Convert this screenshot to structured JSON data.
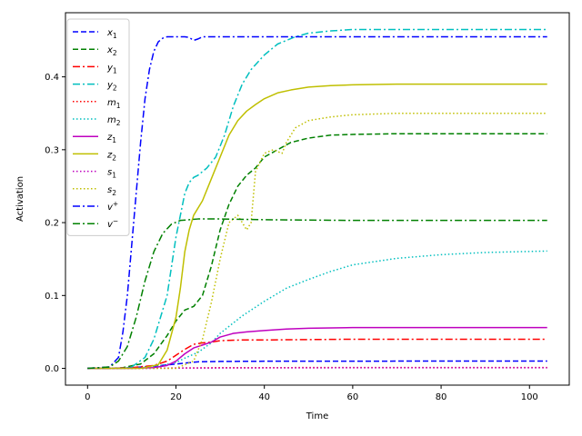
{
  "chart_data": {
    "type": "line",
    "xlabel": "Time",
    "ylabel": "Activation",
    "xlim": [
      -5,
      109
    ],
    "ylim": [
      -0.023,
      0.488
    ],
    "xticks": [
      0,
      20,
      40,
      60,
      80,
      100
    ],
    "xtick_labels": [
      "0",
      "20",
      "40",
      "60",
      "80",
      "100"
    ],
    "yticks": [
      0.0,
      0.1,
      0.2,
      0.3,
      0.4
    ],
    "ytick_labels": [
      "0.0",
      "0.1",
      "0.2",
      "0.3",
      "0.4"
    ],
    "grid": false,
    "legend_position": "top-left",
    "series": [
      {
        "name": "x",
        "sub": "1",
        "sup": "",
        "color": "#0000ff",
        "dash": "dashed",
        "x": [
          0,
          5,
          10,
          15,
          20,
          25,
          30,
          40,
          60,
          80,
          104
        ],
        "y": [
          0,
          0.0,
          0.001,
          0.003,
          0.006,
          0.009,
          0.0095,
          0.0098,
          0.0099,
          0.01,
          0.01
        ]
      },
      {
        "name": "x",
        "sub": "2",
        "sup": "",
        "color": "#008000",
        "dash": "dashed",
        "x": [
          0,
          5,
          8,
          12,
          15,
          18,
          20,
          22,
          24,
          26,
          28,
          30,
          32,
          34,
          36,
          38,
          40,
          43,
          46,
          50,
          55,
          60,
          70,
          80,
          104
        ],
        "y": [
          0,
          0.0,
          0.001,
          0.006,
          0.02,
          0.045,
          0.065,
          0.08,
          0.085,
          0.1,
          0.14,
          0.19,
          0.225,
          0.25,
          0.265,
          0.275,
          0.29,
          0.3,
          0.31,
          0.316,
          0.32,
          0.321,
          0.322,
          0.322,
          0.322
        ]
      },
      {
        "name": "y",
        "sub": "1",
        "sup": "",
        "color": "#ff0000",
        "dash": "dashdot",
        "x": [
          0,
          5,
          10,
          15,
          18,
          20,
          22,
          24,
          26,
          28,
          30,
          35,
          40,
          60,
          80,
          104
        ],
        "y": [
          0,
          0.0,
          0.001,
          0.004,
          0.01,
          0.018,
          0.026,
          0.033,
          0.035,
          0.036,
          0.038,
          0.039,
          0.039,
          0.04,
          0.04,
          0.04
        ]
      },
      {
        "name": "y",
        "sub": "2",
        "sup": "",
        "color": "#00bfbf",
        "dash": "dashdot",
        "x": [
          0,
          8,
          10,
          13,
          15,
          18,
          20,
          22,
          23,
          24,
          25,
          27,
          29,
          31,
          33,
          35,
          37,
          40,
          43,
          47,
          50,
          55,
          60,
          70,
          80,
          104
        ],
        "y": [
          0,
          0.0,
          0.002,
          0.015,
          0.04,
          0.1,
          0.18,
          0.24,
          0.255,
          0.262,
          0.265,
          0.275,
          0.29,
          0.32,
          0.36,
          0.39,
          0.41,
          0.43,
          0.445,
          0.455,
          0.46,
          0.463,
          0.465,
          0.465,
          0.465,
          0.465
        ]
      },
      {
        "name": "m",
        "sub": "1",
        "sup": "",
        "color": "#ff0000",
        "dash": "dotted",
        "x": [
          0,
          10,
          20,
          30,
          40,
          60,
          80,
          104
        ],
        "y": [
          0,
          0.0,
          0.0005,
          0.001,
          0.001,
          0.0012,
          0.0012,
          0.0012
        ]
      },
      {
        "name": "m",
        "sub": "2",
        "sup": "",
        "color": "#00bfbf",
        "dash": "dotted",
        "x": [
          0,
          10,
          15,
          20,
          22,
          25,
          28,
          30,
          35,
          40,
          45,
          50,
          55,
          60,
          70,
          80,
          90,
          104
        ],
        "y": [
          0,
          0.0,
          0.002,
          0.008,
          0.014,
          0.022,
          0.035,
          0.048,
          0.072,
          0.092,
          0.11,
          0.122,
          0.133,
          0.142,
          0.151,
          0.156,
          0.159,
          0.161
        ]
      },
      {
        "name": "z",
        "sub": "1",
        "sup": "",
        "color": "#bf00bf",
        "dash": "solid",
        "x": [
          0,
          10,
          15,
          18,
          20,
          22,
          24,
          26,
          28,
          30,
          33,
          36,
          40,
          45,
          50,
          60,
          80,
          104
        ],
        "y": [
          0,
          0.0,
          0.001,
          0.004,
          0.01,
          0.02,
          0.028,
          0.032,
          0.036,
          0.043,
          0.048,
          0.05,
          0.052,
          0.054,
          0.055,
          0.056,
          0.056,
          0.056
        ]
      },
      {
        "name": "z",
        "sub": "2",
        "sup": "",
        "color": "#bfbf00",
        "dash": "solid",
        "x": [
          0,
          12,
          16,
          18,
          20,
          21,
          22,
          23,
          24,
          26,
          28,
          30,
          32,
          34,
          36,
          38,
          40,
          43,
          46,
          50,
          55,
          60,
          70,
          80,
          104
        ],
        "y": [
          0,
          0.0,
          0.005,
          0.025,
          0.07,
          0.11,
          0.16,
          0.19,
          0.21,
          0.23,
          0.26,
          0.29,
          0.32,
          0.34,
          0.353,
          0.362,
          0.37,
          0.378,
          0.382,
          0.386,
          0.388,
          0.389,
          0.39,
          0.39,
          0.39
        ]
      },
      {
        "name": "s",
        "sub": "1",
        "sup": "",
        "color": "#bf00bf",
        "dash": "dotted",
        "x": [
          0,
          10,
          20,
          40,
          60,
          80,
          104
        ],
        "y": [
          0,
          0.0,
          0.0003,
          0.0006,
          0.0008,
          0.0008,
          0.0008
        ]
      },
      {
        "name": "s",
        "sub": "2",
        "sup": "",
        "color": "#bfbf00",
        "dash": "dotted",
        "x": [
          0,
          20,
          24,
          26,
          28,
          30,
          32,
          34,
          36,
          37,
          38,
          40,
          42,
          44,
          45,
          47,
          50,
          55,
          60,
          70,
          80,
          104
        ],
        "y": [
          0,
          0.0,
          0.01,
          0.04,
          0.09,
          0.15,
          0.2,
          0.21,
          0.19,
          0.2,
          0.27,
          0.295,
          0.3,
          0.295,
          0.31,
          0.33,
          0.34,
          0.345,
          0.348,
          0.35,
          0.35,
          0.35
        ]
      },
      {
        "name": "v",
        "sub": "",
        "sup": "+",
        "color": "#0000ff",
        "dash": "dashdot",
        "x": [
          0,
          5,
          7,
          8,
          9,
          10,
          11,
          12,
          13,
          14,
          15,
          16,
          17,
          18,
          19,
          20,
          22,
          23,
          24,
          25,
          26,
          30,
          40,
          60,
          80,
          104
        ],
        "y": [
          0,
          0.002,
          0.015,
          0.05,
          0.1,
          0.17,
          0.24,
          0.31,
          0.37,
          0.41,
          0.435,
          0.448,
          0.453,
          0.455,
          0.455,
          0.455,
          0.455,
          0.454,
          0.45,
          0.452,
          0.455,
          0.455,
          0.455,
          0.455,
          0.455,
          0.455
        ]
      },
      {
        "name": "v",
        "sub": "",
        "sup": "−",
        "color": "#008000",
        "dash": "dashdot",
        "x": [
          0,
          5,
          7,
          9,
          11,
          13,
          15,
          17,
          19,
          21,
          23,
          25,
          30,
          40,
          60,
          80,
          104
        ],
        "y": [
          0,
          0.002,
          0.01,
          0.03,
          0.07,
          0.12,
          0.16,
          0.185,
          0.198,
          0.203,
          0.204,
          0.205,
          0.205,
          0.204,
          0.203,
          0.203,
          0.203
        ]
      }
    ]
  }
}
